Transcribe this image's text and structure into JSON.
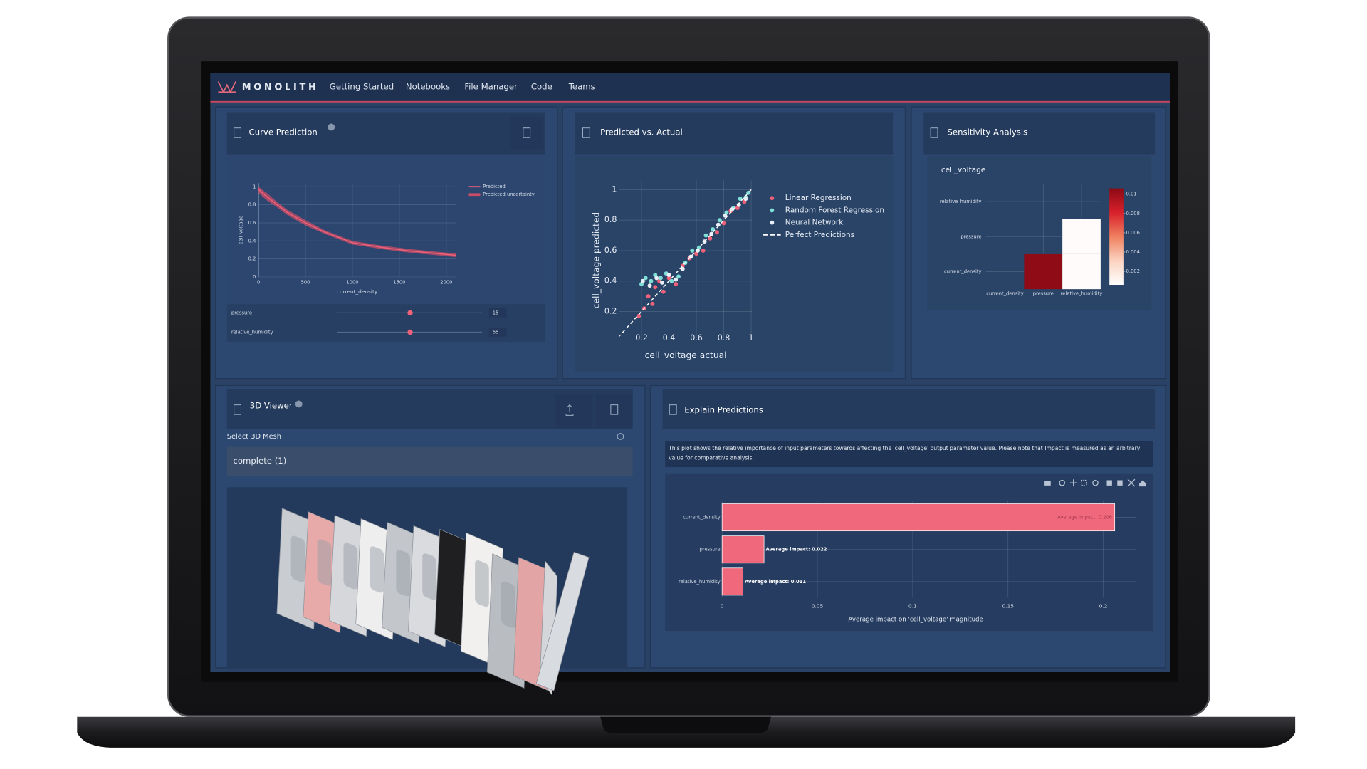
{
  "nav": {
    "brand": "MONOLITH",
    "items": [
      "Getting Started",
      "Notebooks",
      "File Manager",
      "Code",
      "Teams"
    ]
  },
  "panels": {
    "curve": {
      "title": "Curve Prediction",
      "chart": {
        "type": "line",
        "x": [
          0,
          100,
          200,
          300,
          400,
          500,
          700,
          1000,
          1300,
          1600,
          2000,
          2100
        ],
        "series": [
          {
            "name": "Predicted",
            "color": "#f0617a",
            "values": [
              0.97,
              0.88,
              0.8,
              0.72,
              0.66,
              0.6,
              0.5,
              0.38,
              0.33,
              0.29,
              0.25,
              0.24
            ]
          },
          {
            "name": "Predicted uncertainty",
            "color": "#c94d66",
            "lower": [
              0.93,
              0.84,
              0.77,
              0.69,
              0.63,
              0.57,
              0.48,
              0.36,
              0.31,
              0.27,
              0.23,
              0.22
            ],
            "upper": [
              1.0,
              0.92,
              0.83,
              0.75,
              0.69,
              0.63,
              0.52,
              0.4,
              0.35,
              0.31,
              0.27,
              0.26
            ]
          }
        ],
        "xlim": [
          0,
          2100
        ],
        "xticks": [
          0,
          500,
          1000,
          1500,
          2000
        ],
        "ylim": [
          0,
          1.04
        ],
        "yticks": [
          0,
          0.2,
          0.4,
          0.6,
          0.8,
          1
        ],
        "x_label": "current_density",
        "y_label": "cell_voltage",
        "grid": true
      },
      "sliders": [
        {
          "label": "pressure",
          "value": 15
        },
        {
          "label": "relative_humidity",
          "value": 65
        }
      ]
    },
    "pva": {
      "title": "Predicted vs. Actual",
      "chart": {
        "type": "scatter",
        "series": [
          {
            "name": "Linear Regression",
            "color": "#f0617a",
            "x": [
              0.18,
              0.22,
              0.25,
              0.28,
              0.3,
              0.33,
              0.36,
              0.4,
              0.45,
              0.5,
              0.55,
              0.6,
              0.65,
              0.7,
              0.75,
              0.8,
              0.85,
              0.9,
              0.95
            ],
            "values": [
              0.17,
              0.22,
              0.3,
              0.25,
              0.36,
              0.4,
              0.33,
              0.42,
              0.38,
              0.5,
              0.55,
              0.58,
              0.6,
              0.68,
              0.72,
              0.78,
              0.86,
              0.88,
              0.92
            ]
          },
          {
            "name": "Random Forest Regression",
            "color": "#7fe0d8",
            "x": [
              0.2,
              0.23,
              0.27,
              0.3,
              0.34,
              0.38,
              0.42,
              0.47,
              0.52,
              0.57,
              0.62,
              0.67,
              0.72,
              0.77,
              0.82,
              0.87,
              0.92,
              0.96,
              0.98
            ],
            "values": [
              0.38,
              0.42,
              0.4,
              0.44,
              0.42,
              0.45,
              0.4,
              0.43,
              0.52,
              0.6,
              0.62,
              0.7,
              0.74,
              0.8,
              0.85,
              0.88,
              0.94,
              0.95,
              0.98
            ]
          },
          {
            "name": "Neural Network",
            "color": "#e8eef5",
            "x": [
              0.21,
              0.26,
              0.31,
              0.35,
              0.4,
              0.45,
              0.5,
              0.56,
              0.61,
              0.66,
              0.71,
              0.76,
              0.81,
              0.86,
              0.91,
              0.96
            ],
            "values": [
              0.4,
              0.37,
              0.42,
              0.39,
              0.44,
              0.41,
              0.48,
              0.56,
              0.6,
              0.66,
              0.71,
              0.77,
              0.83,
              0.87,
              0.9,
              0.94
            ]
          },
          {
            "name": "Perfect Predictions",
            "color": "#ffffff",
            "dash": true,
            "x": [
              0,
              1
            ],
            "values": [
              0,
              1
            ]
          }
        ],
        "xlim": [
          0.04,
          1.005
        ],
        "xticks": [
          0.2,
          0.4,
          0.6,
          0.8,
          1
        ],
        "ylim": [
          0.03,
          1.06
        ],
        "yticks": [
          0.2,
          0.4,
          0.6,
          0.8,
          1
        ],
        "x_label": "cell_voltage actual",
        "y_label": "cell_voltage predicted",
        "grid": true
      }
    },
    "sensitivity": {
      "title": "Sensitivity Analysis",
      "chart": {
        "type": "heatmap",
        "title": "cell_voltage",
        "x": [
          "current_density",
          "pressure",
          "relative_humidity"
        ],
        "y": [
          "relative_humidity",
          "pressure",
          "current_density"
        ],
        "z": [
          [
            null,
            null,
            null
          ],
          [
            null,
            null,
            0.0008
          ],
          [
            null,
            0.0105,
            0.0008
          ]
        ],
        "zlim": [
          0.0006,
          0.0106
        ],
        "zticks": [
          0.002,
          0.004,
          0.006,
          0.008,
          0.01
        ],
        "colorscale": [
          "#ffffff",
          "#fbd3c0",
          "#f0805f",
          "#d8202b",
          "#8c0a14"
        ]
      }
    },
    "viewer": {
      "title": "3D Viewer",
      "select_label": "Select 3D Mesh",
      "selection": "complete (1)"
    },
    "explain": {
      "title": "Explain Predictions",
      "description": [
        "This plot shows the relative importance of input parameters towards affecting the 'cell_voltage' output parameter value. Please note that Impact is measured as an arbitrary",
        "value for comparative analysis."
      ],
      "chart": {
        "type": "bar",
        "orientation": "horizontal",
        "categories": [
          "current_density",
          "pressure",
          "relative_humidity"
        ],
        "values": [
          0.206,
          0.022,
          0.011
        ],
        "value_labels": [
          "Average impact: 0.206",
          "Average impact: 0.022",
          "Average impact: 0.011"
        ],
        "color": "#f0687c",
        "xlim": [
          0,
          0.217
        ],
        "xticks": [
          0,
          0.05,
          0.1,
          0.15,
          0.2
        ],
        "x_label": "Average impact on 'cell_voltage' magnitude",
        "grid": true
      }
    }
  }
}
